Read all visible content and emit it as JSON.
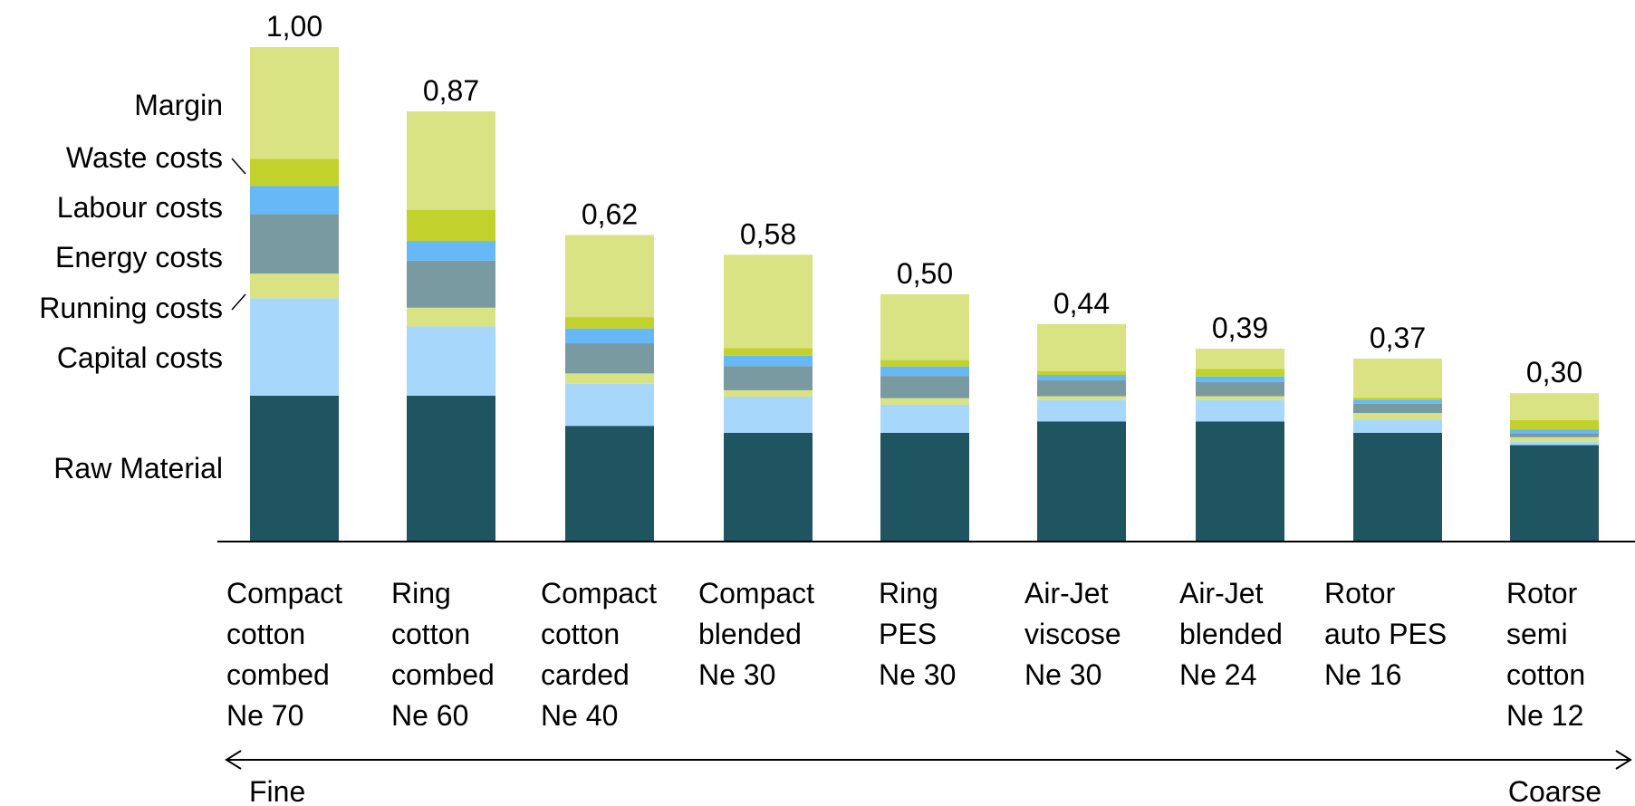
{
  "chart_data": {
    "type": "bar",
    "stacked": true,
    "title": "",
    "xlabel": "",
    "ylabel": "",
    "ylim": [
      0,
      1
    ],
    "grid": false,
    "legend_placement": "left",
    "categories": [
      [
        "Compact",
        "cotton",
        "combed",
        "Ne 70"
      ],
      [
        "Ring",
        "cotton",
        "combed",
        "Ne 60"
      ],
      [
        "Compact",
        "cotton",
        "carded",
        "Ne 40"
      ],
      [
        "Compact",
        "blended",
        "Ne 30"
      ],
      [
        "Ring",
        "PES",
        "Ne 30"
      ],
      [
        "Air-Jet",
        "viscose",
        "Ne 30"
      ],
      [
        "Air-Jet",
        "blended",
        "Ne 24"
      ],
      [
        "Rotor",
        "auto PES",
        "Ne 16"
      ],
      [
        "Rotor",
        "semi",
        "cotton",
        "Ne 12"
      ]
    ],
    "totals": [
      1.0,
      0.87,
      0.62,
      0.58,
      0.5,
      0.44,
      0.39,
      0.37,
      0.3
    ],
    "total_labels": [
      "1,00",
      "0,87",
      "0,62",
      "0,58",
      "0,50",
      "0,44",
      "0,39",
      "0,37",
      "0,30"
    ],
    "series": [
      {
        "name": "Raw Material",
        "color": "#1f5461",
        "values": [
          0.295,
          0.295,
          0.234,
          0.22,
          0.22,
          0.243,
          0.243,
          0.22,
          0.195
        ]
      },
      {
        "name": "Capital costs",
        "color": "#a7d7fb",
        "values": [
          0.197,
          0.14,
          0.085,
          0.073,
          0.057,
          0.043,
          0.043,
          0.027,
          0.008
        ]
      },
      {
        "name": "Running costs",
        "color": "#d9e383",
        "values": [
          0.05,
          0.038,
          0.021,
          0.013,
          0.013,
          0.008,
          0.008,
          0.013,
          0.008
        ]
      },
      {
        "name": "Energy costs",
        "color": "#7a9aa1",
        "values": [
          0.12,
          0.095,
          0.061,
          0.049,
          0.045,
          0.032,
          0.029,
          0.019,
          0.008
        ]
      },
      {
        "name": "Labour costs",
        "color": "#66b9f6",
        "values": [
          0.057,
          0.04,
          0.03,
          0.021,
          0.019,
          0.011,
          0.011,
          0.008,
          0.008
        ]
      },
      {
        "name": "Waste costs",
        "color": "#c2d12b",
        "values": [
          0.055,
          0.063,
          0.023,
          0.015,
          0.013,
          0.008,
          0.015,
          0.004,
          0.019
        ]
      },
      {
        "name": "Margin",
        "color": "#d9e383",
        "values": [
          0.226,
          0.199,
          0.166,
          0.189,
          0.133,
          0.095,
          0.041,
          0.079,
          0.054
        ]
      }
    ],
    "scale_labels": {
      "left": "Fine",
      "right": "Coarse"
    }
  }
}
